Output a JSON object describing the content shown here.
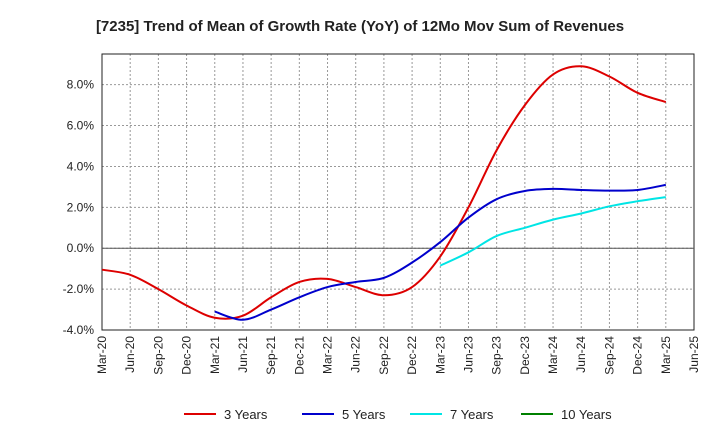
{
  "chart_data": {
    "type": "line",
    "title": "[7235]  Trend of Mean of Growth Rate (YoY) of 12Mo Mov Sum of Revenues",
    "xlabel": "",
    "ylabel": "",
    "ylim": [
      -4.0,
      9.5
    ],
    "yticks": [
      -4.0,
      -2.0,
      0.0,
      2.0,
      4.0,
      6.0,
      8.0
    ],
    "ytick_labels": [
      "-4.0%",
      "-2.0%",
      "0.0%",
      "2.0%",
      "4.0%",
      "6.0%",
      "8.0%"
    ],
    "xticks": [
      "Mar-20",
      "Jun-20",
      "Sep-20",
      "Dec-20",
      "Mar-21",
      "Jun-21",
      "Sep-21",
      "Dec-21",
      "Mar-22",
      "Jun-22",
      "Sep-22",
      "Dec-22",
      "Mar-23",
      "Jun-23",
      "Sep-23",
      "Dec-23",
      "Mar-24",
      "Jun-24",
      "Sep-24",
      "Dec-24",
      "Mar-25",
      "Jun-25"
    ],
    "grid": true,
    "legend_position": "bottom",
    "series": [
      {
        "name": "3 Years",
        "color": "#dd0000",
        "points": [
          [
            "Mar-20",
            -1.05
          ],
          [
            "Jun-20",
            -1.3
          ],
          [
            "Sep-20",
            -2.0
          ],
          [
            "Dec-20",
            -2.8
          ],
          [
            "Mar-21",
            -3.4
          ],
          [
            "Jun-21",
            -3.3
          ],
          [
            "Sep-21",
            -2.4
          ],
          [
            "Dec-21",
            -1.65
          ],
          [
            "Mar-22",
            -1.5
          ],
          [
            "Jun-22",
            -1.9
          ],
          [
            "Sep-22",
            -2.3
          ],
          [
            "Dec-22",
            -1.9
          ],
          [
            "Mar-23",
            -0.4
          ],
          [
            "Jun-23",
            2.0
          ],
          [
            "Sep-23",
            4.8
          ],
          [
            "Dec-23",
            7.0
          ],
          [
            "Mar-24",
            8.5
          ],
          [
            "Jun-24",
            8.9
          ],
          [
            "Sep-24",
            8.4
          ],
          [
            "Dec-24",
            7.6
          ],
          [
            "Mar-25",
            7.15
          ]
        ]
      },
      {
        "name": "5 Years",
        "color": "#0000cc",
        "points": [
          [
            "Mar-21",
            -3.1
          ],
          [
            "Jun-21",
            -3.5
          ],
          [
            "Sep-21",
            -3.0
          ],
          [
            "Dec-21",
            -2.4
          ],
          [
            "Mar-22",
            -1.9
          ],
          [
            "Jun-22",
            -1.65
          ],
          [
            "Sep-22",
            -1.45
          ],
          [
            "Dec-22",
            -0.7
          ],
          [
            "Mar-23",
            0.3
          ],
          [
            "Jun-23",
            1.5
          ],
          [
            "Sep-23",
            2.4
          ],
          [
            "Dec-23",
            2.8
          ],
          [
            "Mar-24",
            2.9
          ],
          [
            "Jun-24",
            2.85
          ],
          [
            "Sep-24",
            2.82
          ],
          [
            "Dec-24",
            2.85
          ],
          [
            "Mar-25",
            3.1
          ]
        ]
      },
      {
        "name": "7 Years",
        "color": "#00e5e5",
        "points": [
          [
            "Mar-23",
            -0.85
          ],
          [
            "Jun-23",
            -0.2
          ],
          [
            "Sep-23",
            0.6
          ],
          [
            "Dec-23",
            1.0
          ],
          [
            "Mar-24",
            1.4
          ],
          [
            "Jun-24",
            1.7
          ],
          [
            "Sep-24",
            2.05
          ],
          [
            "Dec-24",
            2.3
          ],
          [
            "Mar-25",
            2.5
          ]
        ]
      },
      {
        "name": "10 Years",
        "color": "#008000",
        "points": []
      }
    ]
  }
}
